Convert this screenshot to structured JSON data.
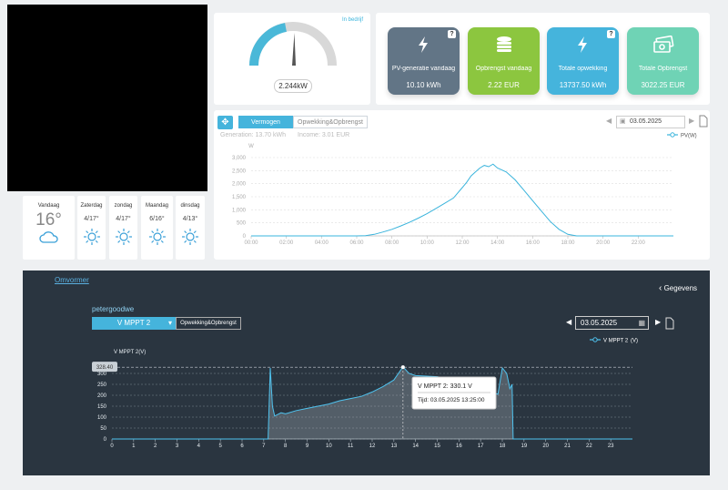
{
  "weather": {
    "today": {
      "day": "Vandaag",
      "temp": "16°"
    },
    "forecast": [
      {
        "day": "Zaterdag",
        "temp": "4/17°"
      },
      {
        "day": "zondag",
        "temp": "4/17°"
      },
      {
        "day": "Maandag",
        "temp": "6/16°"
      },
      {
        "day": "dinsdag",
        "temp": "4/13°"
      }
    ]
  },
  "gauge": {
    "status": "In bedrijf",
    "value": "2.244kW"
  },
  "stats": [
    {
      "label": "PV-generatie vandaag",
      "value": "10.10 kWh"
    },
    {
      "label": "Opbrengst vandaag",
      "value": "2.22 EUR"
    },
    {
      "label": "Totale opwekking",
      "value": "13737.50 kWh"
    },
    {
      "label": "Totale Opbrengst",
      "value": "3022.25 EUR"
    }
  ],
  "power_panel": {
    "tabs": [
      "Vermogen",
      "Opwekking&Opbrengst"
    ],
    "date": "03.05.2025",
    "generation": "Generation: 13.70 kWh",
    "income": "Income: 3.01 EUR"
  },
  "inverter": {
    "link": "Omvormer",
    "back": "Gegevens",
    "plant": "petergoodwe",
    "dropdown": "V MPPT 2",
    "button": "Opwekking&Opbrengst",
    "date": "03.05.2025"
  },
  "chart_data": [
    {
      "type": "line",
      "y_label": "W",
      "grid": true,
      "x": [
        0,
        6,
        6.5,
        7,
        7.5,
        8,
        8.5,
        9,
        9.5,
        10,
        10.5,
        11,
        11.5,
        12,
        12.25,
        12.5,
        12.75,
        13,
        13.25,
        13.5,
        13.75,
        14,
        14.5,
        15,
        15.5,
        16,
        16.5,
        17,
        17.5,
        18,
        18.5,
        24
      ],
      "series": [
        {
          "name": "PV(W)",
          "color": "#3ab4dc",
          "values": [
            0,
            0,
            10,
            60,
            150,
            250,
            380,
            520,
            680,
            850,
            1050,
            1250,
            1450,
            1850,
            2050,
            2300,
            2450,
            2600,
            2700,
            2650,
            2750,
            2600,
            2450,
            2150,
            1750,
            1350,
            950,
            550,
            250,
            60,
            0,
            0
          ]
        }
      ],
      "xlim": [
        0,
        24
      ],
      "xticks": [
        {
          "value": 0,
          "label": "00:00"
        },
        {
          "value": 2,
          "label": "02:00"
        },
        {
          "value": 4,
          "label": "04:00"
        },
        {
          "value": 6,
          "label": "06:00"
        },
        {
          "value": 8,
          "label": "08:00"
        },
        {
          "value": 10,
          "label": "10:00"
        },
        {
          "value": 12,
          "label": "12:00"
        },
        {
          "value": 14,
          "label": "14:00"
        },
        {
          "value": 16,
          "label": "16:00"
        },
        {
          "value": 18,
          "label": "18:00"
        },
        {
          "value": 20,
          "label": "20:00"
        },
        {
          "value": 22,
          "label": "22:00"
        }
      ],
      "ylim": [
        0,
        3000
      ],
      "yticks": [
        0,
        500,
        {
          "value": 1000,
          "label": "1,000"
        },
        {
          "value": 1500,
          "label": "1,500"
        },
        {
          "value": 2000,
          "label": "2,000"
        },
        {
          "value": 2500,
          "label": "2,500"
        },
        {
          "value": 3000,
          "label": "3,000"
        }
      ]
    },
    {
      "type": "line",
      "y_label": "V MPPT 2(V)",
      "legend_unit": "(V)",
      "grid": true,
      "x": [
        0,
        7.2,
        7.3,
        7.4,
        7.5,
        7.8,
        8,
        8.5,
        9,
        9.5,
        10,
        10.5,
        11,
        11.5,
        12,
        12.5,
        13,
        13.42,
        13.7,
        14,
        15,
        16,
        17,
        17.5,
        17.8,
        18,
        18.2,
        18.35,
        18.45,
        18.5,
        24
      ],
      "series": [
        {
          "name": "V MPPT 2",
          "color": "#4fc3ef",
          "values": [
            0,
            0,
            325,
            150,
            105,
            120,
            115,
            130,
            140,
            150,
            160,
            175,
            185,
            195,
            215,
            240,
            270,
            330.1,
            300,
            290,
            285,
            265,
            235,
            215,
            205,
            325,
            300,
            230,
            250,
            0,
            0
          ]
        }
      ],
      "xlim": [
        0,
        24
      ],
      "xticks": [
        0,
        1,
        2,
        3,
        4,
        5,
        6,
        7,
        8,
        9,
        10,
        11,
        12,
        13,
        14,
        15,
        16,
        17,
        18,
        19,
        20,
        21,
        22,
        23
      ],
      "ylim": [
        0,
        350
      ],
      "yticks": [
        0,
        50,
        100,
        150,
        200,
        250,
        300
      ],
      "max_marker": {
        "value": 328.4,
        "label": "328.40"
      },
      "tooltip": {
        "x": 13.42,
        "line1": "V MPPT 2: 330.1 V",
        "line2": "Tijd: 03.05.2025 13:25:00"
      }
    }
  ]
}
